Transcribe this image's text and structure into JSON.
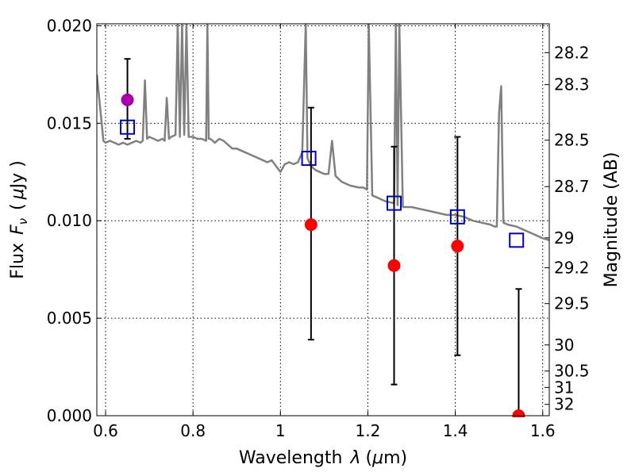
{
  "chart_data": {
    "type": "scatter",
    "xlabel": "Wavelength",
    "xlabel_symbol": "λ",
    "xlabel_unit_open": "(",
    "xlabel_unit_mu": "μ",
    "xlabel_unit_rest": "m)",
    "ylabel": "Flux",
    "ylabel_symbol": "F",
    "ylabel_subscript": "ν",
    "ylabel_unit_open": "(",
    "ylabel_unit_mu": "μ",
    "ylabel_unit_rest": "Jy )",
    "y2label": "Magnitude (AB)",
    "xlim": [
      0.58,
      1.615
    ],
    "ylim": [
      0.0,
      0.0201
    ],
    "grid": true,
    "x_ticks": [
      0.6,
      0.8,
      1.0,
      1.2,
      1.4,
      1.6
    ],
    "x_tick_labels": [
      "0.6",
      "0.8",
      "1",
      "1.2",
      "1.4",
      "1.6"
    ],
    "y_ticks": [
      0.0,
      0.005,
      0.01,
      0.015,
      0.02
    ],
    "y_tick_labels": [
      "0.000",
      "0.005",
      "0.010",
      "0.015",
      "0.020"
    ],
    "y2_ticks": [
      {
        "label": "28.2",
        "flux": 0.01862
      },
      {
        "label": "28.3",
        "flux": 0.01698
      },
      {
        "label": "28.5",
        "flux": 0.01413
      },
      {
        "label": "28.7",
        "flux": 0.01175
      },
      {
        "label": "29",
        "flux": 0.00912
      },
      {
        "label": "29.2",
        "flux": 0.00759
      },
      {
        "label": "29.5",
        "flux": 0.00575
      },
      {
        "label": "30",
        "flux": 0.00363
      },
      {
        "label": "30.5",
        "flux": 0.00229
      },
      {
        "label": "31",
        "flux": 0.00145
      },
      {
        "label": "32",
        "flux": 0.00058
      }
    ],
    "colors": {
      "model": "#808080",
      "synthetic": "#0000cc",
      "observed": "#ff0000",
      "optical": "#aa00aa",
      "errorbar": "#000000"
    },
    "model_spectrum": {
      "x": [
        0.58,
        0.595,
        0.6,
        0.61,
        0.62,
        0.63,
        0.64,
        0.65,
        0.66,
        0.67,
        0.68,
        0.685,
        0.69,
        0.695,
        0.7,
        0.71,
        0.72,
        0.73,
        0.735,
        0.74,
        0.745,
        0.75,
        0.76,
        0.765,
        0.77,
        0.775,
        0.78,
        0.785,
        0.79,
        0.8,
        0.81,
        0.82,
        0.83,
        0.833,
        0.836,
        0.84,
        0.85,
        0.86,
        0.87,
        0.88,
        0.89,
        0.9,
        0.92,
        0.94,
        0.96,
        0.97,
        0.98,
        0.99,
        1.0,
        1.01,
        1.02,
        1.03,
        1.04,
        1.05,
        1.058,
        1.062,
        1.07,
        1.08,
        1.09,
        1.1,
        1.11,
        1.118,
        1.126,
        1.14,
        1.16,
        1.18,
        1.19,
        1.198,
        1.202,
        1.21,
        1.22,
        1.24,
        1.26,
        1.264,
        1.268,
        1.272,
        1.28,
        1.3,
        1.32,
        1.34,
        1.36,
        1.38,
        1.4,
        1.42,
        1.44,
        1.46,
        1.48,
        1.49,
        1.495,
        1.5,
        1.505,
        1.51,
        1.52,
        1.54,
        1.56,
        1.58,
        1.6,
        1.615
      ],
      "y": [
        0.0175,
        0.0141,
        0.014,
        0.0141,
        0.014,
        0.0139,
        0.014,
        0.0139,
        0.014,
        0.0141,
        0.014,
        0.0141,
        0.0172,
        0.0142,
        0.0143,
        0.0142,
        0.0141,
        0.0142,
        0.0141,
        0.0163,
        0.0142,
        0.0143,
        0.0144,
        0.0201,
        0.0143,
        0.0201,
        0.0144,
        0.0201,
        0.0143,
        0.0143,
        0.0142,
        0.0142,
        0.0141,
        0.0201,
        0.0142,
        0.0142,
        0.014,
        0.0142,
        0.0141,
        0.0139,
        0.0137,
        0.0137,
        0.0135,
        0.0133,
        0.0131,
        0.013,
        0.0131,
        0.0128,
        0.0125,
        0.0129,
        0.013,
        0.0129,
        0.013,
        0.0135,
        0.0201,
        0.0132,
        0.0128,
        0.0126,
        0.0125,
        0.0124,
        0.0124,
        0.0141,
        0.0123,
        0.012,
        0.0118,
        0.0117,
        0.0117,
        0.0116,
        0.0201,
        0.0113,
        0.0112,
        0.011,
        0.0109,
        0.0201,
        0.0108,
        0.0201,
        0.0107,
        0.0107,
        0.0106,
        0.0105,
        0.0104,
        0.0103,
        0.0103,
        0.0102,
        0.01,
        0.0099,
        0.0098,
        0.0097,
        0.0097,
        0.0155,
        0.0169,
        0.0099,
        0.0098,
        0.0097,
        0.0095,
        0.0093,
        0.0091,
        0.009
      ]
    },
    "synthetic_photometry": {
      "x": [
        0.65,
        1.065,
        1.26,
        1.405,
        1.54
      ],
      "y": [
        0.0148,
        0.0132,
        0.0109,
        0.0102,
        0.009
      ]
    },
    "observed_photometry": {
      "x": [
        1.07,
        1.26,
        1.405,
        1.545
      ],
      "y": [
        0.0098,
        0.0077,
        0.0087,
        0.0
      ],
      "yerr_low": [
        0.0039,
        0.0016,
        0.0031,
        0.0
      ],
      "yerr_high": [
        0.0158,
        0.0138,
        0.0143,
        0.0065
      ]
    },
    "optical_photometry": {
      "x": [
        0.65
      ],
      "y": [
        0.0162
      ],
      "yerr_low": [
        0.0142
      ],
      "yerr_high": [
        0.0183
      ]
    }
  }
}
